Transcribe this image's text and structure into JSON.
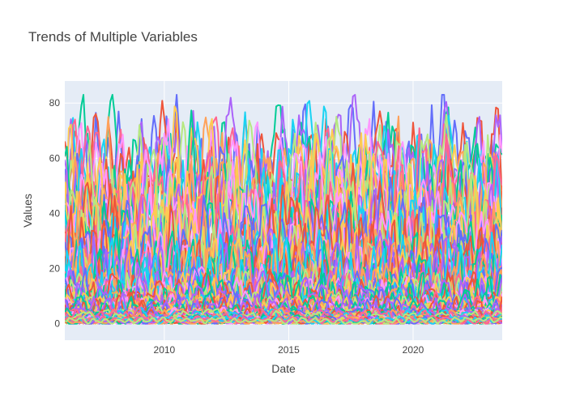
{
  "chart_data": {
    "type": "line",
    "title": "Trends of Multiple Variables",
    "xlabel": "Date",
    "ylabel": "Values",
    "x_range": [
      "2006-01-01",
      "2023-08-01"
    ],
    "x_step": "month",
    "ylim": [
      -6,
      88
    ],
    "xticks": [
      {
        "value": "2010-01-01",
        "label": "2010"
      },
      {
        "value": "2015-01-01",
        "label": "2015"
      },
      {
        "value": "2020-01-01",
        "label": "2020"
      }
    ],
    "yticks": [
      0,
      20,
      40,
      60,
      80
    ],
    "grid": true,
    "legend": "none",
    "background": "#E5ECF6",
    "palette": [
      "#636EFA",
      "#EF553B",
      "#00CC96",
      "#AB63FA",
      "#FFA15A",
      "#19D3F3",
      "#FF6692",
      "#B6E880",
      "#FF97FF",
      "#FECB52"
    ],
    "series_profiles": [
      {
        "low": 35,
        "high": 78,
        "count": 4
      },
      {
        "low": 25,
        "high": 72,
        "count": 6
      },
      {
        "low": 15,
        "high": 62,
        "count": 10
      },
      {
        "low": 5,
        "high": 45,
        "count": 12
      },
      {
        "low": 2,
        "high": 30,
        "count": 14
      },
      {
        "low": 0.5,
        "high": 18,
        "count": 18
      },
      {
        "low": 0,
        "high": 10,
        "count": 20
      },
      {
        "low": 0,
        "high": 5,
        "count": 24
      },
      {
        "low": 0,
        "high": 2.5,
        "count": 20
      }
    ],
    "y_max_observed": 83
  }
}
